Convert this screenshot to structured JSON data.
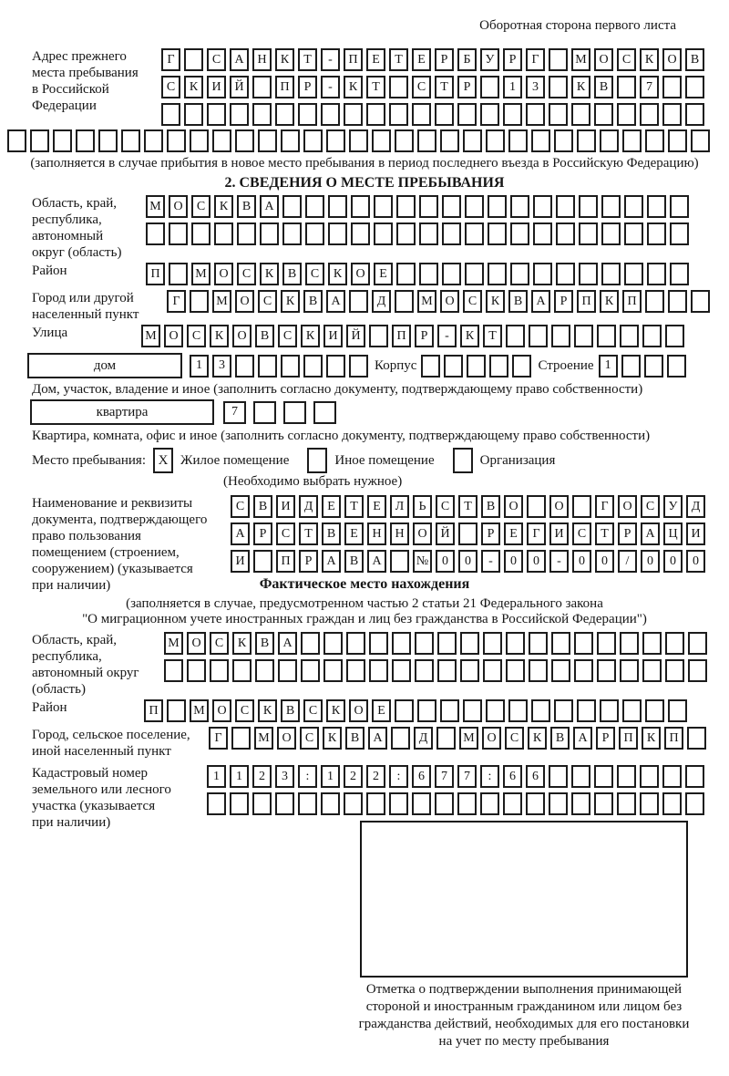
{
  "page": {
    "header_note": "Оборотная сторона первого листа"
  },
  "prev_address": {
    "label_lines": [
      "Адрес прежнего",
      "места пребывания",
      "в Российской",
      "Федерации"
    ],
    "rows": [
      [
        "Г",
        "",
        "С",
        "А",
        "Н",
        "К",
        "Т",
        "-",
        "П",
        "Е",
        "Т",
        "Е",
        "Р",
        "Б",
        "У",
        "Р",
        "Г",
        "",
        "М",
        "О",
        "С",
        "К",
        "О",
        "В"
      ],
      [
        "С",
        "К",
        "И",
        "Й",
        "",
        "П",
        "Р",
        "-",
        "К",
        "Т",
        "",
        "С",
        "Т",
        "Р",
        "",
        "1",
        "3",
        "",
        "К",
        "В",
        "",
        "7",
        "",
        ""
      ],
      [
        "",
        "",
        "",
        "",
        "",
        "",
        "",
        "",
        "",
        "",
        "",
        "",
        "",
        "",
        "",
        "",
        "",
        "",
        "",
        "",
        "",
        "",
        "",
        ""
      ]
    ],
    "full_row": [
      "",
      "",
      "",
      "",
      "",
      "",
      "",
      "",
      "",
      "",
      "",
      "",
      "",
      "",
      "",
      "",
      "",
      "",
      "",
      "",
      "",
      "",
      "",
      "",
      "",
      "",
      "",
      "",
      "",
      "",
      ""
    ],
    "note": "(заполняется в случае прибытия в новое место пребывания в период последнего въезда в Российскую Федерацию)"
  },
  "section2": {
    "title": "2. СВЕДЕНИЯ О МЕСТЕ ПРЕБЫВАНИЯ",
    "region": {
      "label_lines": [
        "Область, край,",
        "республика,",
        "автономный",
        "округ (область)"
      ],
      "rows": [
        [
          "М",
          "О",
          "С",
          "К",
          "В",
          "А",
          "",
          "",
          "",
          "",
          "",
          "",
          "",
          "",
          "",
          "",
          "",
          "",
          "",
          "",
          "",
          "",
          "",
          ""
        ],
        [
          "",
          "",
          "",
          "",
          "",
          "",
          "",
          "",
          "",
          "",
          "",
          "",
          "",
          "",
          "",
          "",
          "",
          "",
          "",
          "",
          "",
          "",
          "",
          ""
        ]
      ]
    },
    "district": {
      "label": "Район",
      "row": [
        "П",
        "",
        "М",
        "О",
        "С",
        "К",
        "В",
        "С",
        "К",
        "О",
        "Е",
        "",
        "",
        "",
        "",
        "",
        "",
        "",
        "",
        "",
        "",
        "",
        "",
        ""
      ]
    },
    "city": {
      "label_lines": [
        "Город или другой",
        "населенный пункт"
      ],
      "row": [
        "Г",
        "",
        "М",
        "О",
        "С",
        "К",
        "В",
        "А",
        "",
        "Д",
        "",
        "М",
        "О",
        "С",
        "К",
        "В",
        "А",
        "Р",
        "П",
        "К",
        "П",
        "",
        "",
        ""
      ]
    },
    "street": {
      "label": "Улица",
      "row": [
        "М",
        "О",
        "С",
        "К",
        "О",
        "В",
        "С",
        "К",
        "И",
        "Й",
        "",
        "П",
        "Р",
        "-",
        "К",
        "Т",
        "",
        "",
        "",
        "",
        "",
        "",
        "",
        ""
      ]
    },
    "house": {
      "house_label": "дом",
      "house_cells": [
        "1",
        "3",
        "",
        "",
        "",
        "",
        "",
        ""
      ],
      "korpus_label": "Корпус",
      "korpus_cells": [
        "",
        "",
        "",
        "",
        ""
      ],
      "stroenie_label": "Строение",
      "stroenie_cells": [
        "1",
        "",
        "",
        ""
      ]
    },
    "house_note": "Дом, участок, владение и иное (заполнить согласно документу, подтверждающему право собственности)",
    "apartment": {
      "label": "квартира",
      "cells": [
        "7",
        "",
        "",
        ""
      ]
    },
    "apartment_note": "Квартира, комната, офис и иное (заполнить согласно документу, подтверждающему право собственности)",
    "stay_type": {
      "label": "Место пребывания:",
      "options": [
        {
          "label": "Жилое помещение",
          "checked": "X"
        },
        {
          "label": "Иное помещение",
          "checked": ""
        },
        {
          "label": "Организация",
          "checked": ""
        }
      ],
      "note": "(Необходимо выбрать нужное)"
    },
    "document": {
      "label_lines": [
        "Наименование и реквизиты",
        "документа, подтверждающего",
        "право пользования",
        "помещением (строением,",
        "сооружением) (указывается",
        "при наличии)"
      ],
      "rows": [
        [
          "С",
          "В",
          "И",
          "Д",
          "Е",
          "Т",
          "Е",
          "Л",
          "Ь",
          "С",
          "Т",
          "В",
          "О",
          "",
          "О",
          "",
          "Г",
          "О",
          "С",
          "У",
          "Д"
        ],
        [
          "А",
          "Р",
          "С",
          "Т",
          "В",
          "Е",
          "Н",
          "Н",
          "О",
          "Й",
          "",
          "Р",
          "Е",
          "Г",
          "И",
          "С",
          "Т",
          "Р",
          "А",
          "Ц",
          "И"
        ],
        [
          "И",
          "",
          "П",
          "Р",
          "А",
          "В",
          "А",
          "",
          "№",
          "0",
          "0",
          "-",
          "0",
          "0",
          "-",
          "0",
          "0",
          "/",
          "0",
          "0",
          "0"
        ]
      ]
    }
  },
  "section3": {
    "title": "Фактическое место нахождения",
    "law_note_lines": [
      "(заполняется в случае, предусмотренном частью 2 статьи 21 Федерального закона",
      "\"О миграционном учете иностранных граждан и лиц без гражданства в Российской Федерации\")"
    ],
    "region": {
      "label_lines": [
        "Область, край,",
        "республика,",
        "автономный округ",
        "(область)"
      ],
      "rows": [
        [
          "М",
          "О",
          "С",
          "К",
          "В",
          "А",
          "",
          "",
          "",
          "",
          "",
          "",
          "",
          "",
          "",
          "",
          "",
          "",
          "",
          "",
          "",
          "",
          "",
          ""
        ],
        [
          "",
          "",
          "",
          "",
          "",
          "",
          "",
          "",
          "",
          "",
          "",
          "",
          "",
          "",
          "",
          "",
          "",
          "",
          "",
          "",
          "",
          "",
          "",
          ""
        ]
      ]
    },
    "district": {
      "label": "Район",
      "row": [
        "П",
        "",
        "М",
        "О",
        "С",
        "К",
        "В",
        "С",
        "К",
        "О",
        "Е",
        "",
        "",
        "",
        "",
        "",
        "",
        "",
        "",
        "",
        "",
        "",
        "",
        ""
      ]
    },
    "city": {
      "label_lines": [
        "Город, сельское поселение,",
        "иной населенный пункт"
      ],
      "row": [
        "Г",
        "",
        "М",
        "О",
        "С",
        "К",
        "В",
        "А",
        "",
        "Д",
        "",
        "М",
        "О",
        "С",
        "К",
        "В",
        "А",
        "Р",
        "П",
        "К",
        "П",
        ""
      ]
    },
    "cadastral": {
      "label_lines": [
        "Кадастровый номер",
        "земельного или лесного",
        "участка (указывается",
        "при наличии)"
      ],
      "rows": [
        [
          "1",
          "1",
          "2",
          "3",
          ":",
          "1",
          "2",
          "2",
          ":",
          "6",
          "7",
          "7",
          ":",
          "6",
          "6",
          "",
          "",
          "",
          "",
          "",
          "",
          ""
        ],
        [
          "",
          "",
          "",
          "",
          "",
          "",
          "",
          "",
          "",
          "",
          "",
          "",
          "",
          "",
          "",
          "",
          "",
          "",
          "",
          "",
          "",
          ""
        ]
      ]
    },
    "stamp_caption_lines": [
      "Отметка о подтверждении выполнения принимающей",
      "стороной и иностранным гражданином или лицом без",
      "гражданства действий, необходимых для его постановки",
      "на учет по месту пребывания"
    ]
  }
}
